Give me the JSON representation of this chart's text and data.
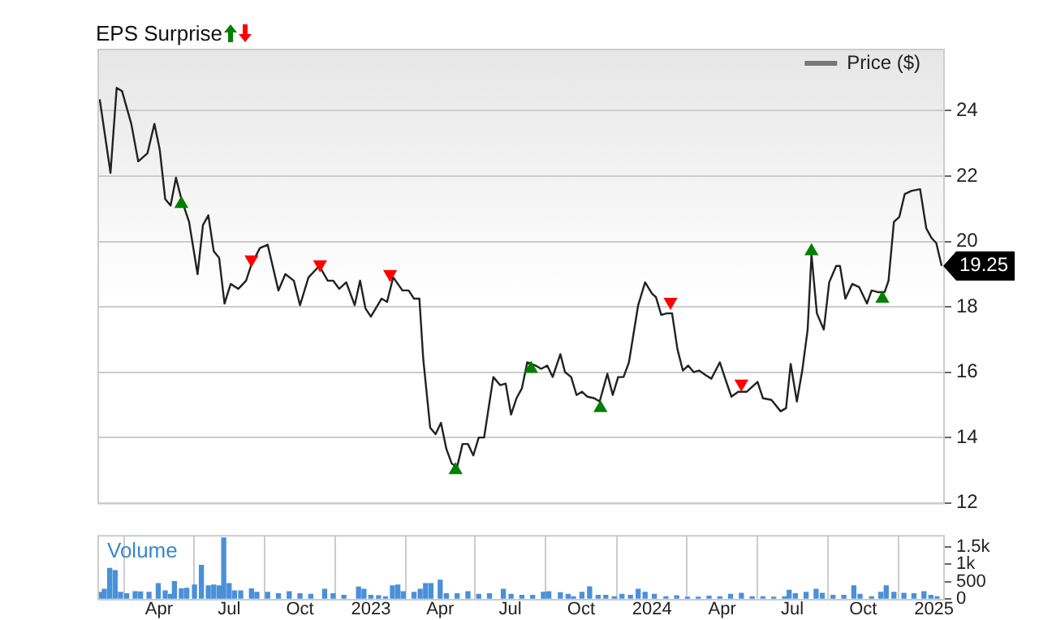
{
  "chart_data": [
    {
      "type": "line",
      "legend_title": "EPS Surprise",
      "legend": "top right",
      "grid": true,
      "tick_labels": "y",
      "xlim": [
        "2022-01-11",
        "2025-01-13"
      ],
      "ylim": [
        12,
        25.9
      ],
      "yticks": [
        12,
        14,
        16,
        18,
        20,
        22,
        24
      ],
      "xticks": [
        {
          "value": "2022-04-01",
          "label": null
        },
        {
          "value": "2022-07-01",
          "label": null
        },
        {
          "value": "2022-10-01",
          "label": null
        },
        {
          "value": "2023-01-01",
          "label": null
        },
        {
          "value": "2023-04-01",
          "label": null
        },
        {
          "value": "2023-07-01",
          "label": null
        },
        {
          "value": "2023-10-01",
          "label": null
        },
        {
          "value": "2024-01-01",
          "label": null
        },
        {
          "value": "2024-04-01",
          "label": null
        },
        {
          "value": "2024-07-01",
          "label": null
        },
        {
          "value": "2024-10-01",
          "label": null
        },
        {
          "value": "2025-01-01",
          "label": null
        }
      ],
      "annotations": [
        {
          "text": "19.25",
          "x": "2025-01-11",
          "y": 19.25
        }
      ],
      "series": [
        {
          "name": "Price ($)",
          "type": "line",
          "color": "#222222",
          "x": [
            "2022-01-14",
            "2022-01-28",
            "2022-02-05",
            "2022-02-12",
            "2022-02-24",
            "2022-03-05",
            "2022-03-17",
            "2022-03-26",
            "2022-04-02",
            "2022-04-09",
            "2022-04-16",
            "2022-04-23",
            "2022-04-30",
            "2022-05-10",
            "2022-05-21",
            "2022-05-28",
            "2022-06-04",
            "2022-06-11",
            "2022-06-18",
            "2022-06-25",
            "2022-07-03",
            "2022-07-13",
            "2022-07-23",
            "2022-07-30",
            "2022-08-10",
            "2022-08-20",
            "2022-09-03",
            "2022-09-12",
            "2022-09-23",
            "2022-10-01",
            "2022-10-12",
            "2022-10-26",
            "2022-11-06",
            "2022-11-13",
            "2022-11-21",
            "2022-11-30",
            "2022-12-11",
            "2022-12-18",
            "2022-12-25",
            "2023-01-01",
            "2023-01-15",
            "2023-01-22",
            "2023-01-30",
            "2023-02-11",
            "2023-02-19",
            "2023-02-26",
            "2023-03-05",
            "2023-03-10",
            "2023-03-19",
            "2023-03-26",
            "2023-04-02",
            "2023-04-09",
            "2023-04-16",
            "2023-04-23",
            "2023-04-30",
            "2023-05-07",
            "2023-05-14",
            "2023-05-21",
            "2023-05-28",
            "2023-06-09",
            "2023-06-18",
            "2023-06-25",
            "2023-07-02",
            "2023-07-09",
            "2023-07-16",
            "2023-07-23",
            "2023-08-03",
            "2023-08-10",
            "2023-08-18",
            "2023-08-25",
            "2023-09-04",
            "2023-09-10",
            "2023-09-18",
            "2023-09-25",
            "2023-10-02",
            "2023-10-09",
            "2023-10-18",
            "2023-10-25",
            "2023-11-04",
            "2023-11-11",
            "2023-11-18",
            "2023-11-25",
            "2023-12-02",
            "2023-12-14",
            "2023-12-23",
            "2024-01-01",
            "2024-01-06",
            "2024-01-13",
            "2024-01-20",
            "2024-01-27",
            "2024-02-03",
            "2024-02-10",
            "2024-02-17",
            "2024-02-24",
            "2024-03-02",
            "2024-03-11",
            "2024-03-18",
            "2024-03-29",
            "2024-04-05",
            "2024-04-13",
            "2024-04-22",
            "2024-05-03",
            "2024-05-17",
            "2024-05-24",
            "2024-06-04",
            "2024-06-16",
            "2024-06-23",
            "2024-06-29",
            "2024-07-07",
            "2024-07-14",
            "2024-07-21",
            "2024-07-26",
            "2024-08-02",
            "2024-08-11",
            "2024-08-18",
            "2024-08-27",
            "2024-09-01",
            "2024-09-08",
            "2024-09-17",
            "2024-09-26",
            "2024-10-06",
            "2024-10-12",
            "2024-10-20",
            "2024-10-29",
            "2024-11-03",
            "2024-11-10",
            "2024-11-17",
            "2024-11-24",
            "2024-12-03",
            "2024-12-14",
            "2024-12-22",
            "2024-12-29",
            "2025-01-04",
            "2025-01-11"
          ],
          "values": [
            24.35,
            22.1,
            24.7,
            24.6,
            23.6,
            22.45,
            22.7,
            23.6,
            22.8,
            21.3,
            21.1,
            21.95,
            21.3,
            20.6,
            19.0,
            20.5,
            20.8,
            19.7,
            19.5,
            18.1,
            18.7,
            18.55,
            18.8,
            19.3,
            19.8,
            19.9,
            18.5,
            19.0,
            18.8,
            18.05,
            18.9,
            19.25,
            18.8,
            18.8,
            18.55,
            18.75,
            18.05,
            18.8,
            17.95,
            17.7,
            18.25,
            18.15,
            18.9,
            18.5,
            18.5,
            18.25,
            18.25,
            16.4,
            14.3,
            14.1,
            14.45,
            13.65,
            13.2,
            13.1,
            13.8,
            13.8,
            13.45,
            14.0,
            14.0,
            15.85,
            15.6,
            15.65,
            14.7,
            15.2,
            15.5,
            16.3,
            16.2,
            16.1,
            16.2,
            15.85,
            16.55,
            16.0,
            15.85,
            15.3,
            15.4,
            15.25,
            15.2,
            15.1,
            15.95,
            15.3,
            15.85,
            15.85,
            16.3,
            18.05,
            18.75,
            18.4,
            18.3,
            17.75,
            17.8,
            17.8,
            16.7,
            16.05,
            16.2,
            16.0,
            16.05,
            15.9,
            15.8,
            16.3,
            15.8,
            15.25,
            15.4,
            15.4,
            15.7,
            15.2,
            15.15,
            14.8,
            14.9,
            16.25,
            15.1,
            16.05,
            17.3,
            19.6,
            17.8,
            17.3,
            18.75,
            19.25,
            19.25,
            18.25,
            18.7,
            18.6,
            18.1,
            18.5,
            18.45,
            18.45,
            18.8,
            20.6,
            20.75,
            21.45,
            21.55,
            21.6,
            20.4,
            20.1,
            19.95,
            19.25
          ]
        },
        {
          "type": "scatter",
          "marker": "triangle",
          "color": "#008000",
          "x": [
            "2022-04-30",
            "2023-04-21",
            "2023-07-28",
            "2023-10-26",
            "2024-07-26",
            "2024-10-26"
          ],
          "values": [
            21.15,
            13.0,
            16.1,
            14.9,
            19.7,
            18.25
          ]
        },
        {
          "type": "scatter",
          "marker": "triangle",
          "color": "#ff0000",
          "x": [
            "2022-07-30",
            "2022-10-27",
            "2023-01-26",
            "2024-01-25",
            "2024-04-26"
          ],
          "values": [
            19.45,
            19.3,
            19.0,
            18.15,
            15.65
          ]
        }
      ]
    },
    {
      "type": "bar",
      "title": "Volume",
      "grid": "x",
      "color": "#4a90d9",
      "xlim": [
        "2022-01-11",
        "2025-01-13"
      ],
      "ylim": [
        0,
        1850
      ],
      "yticks": [
        0,
        500,
        {
          "value": 1000,
          "label": "1k"
        },
        {
          "value": 1500,
          "label": "1.5k"
        }
      ],
      "xticks": [
        {
          "value": "2022-04-01",
          "label": "Apr"
        },
        {
          "value": "2022-07-01",
          "label": "Jul"
        },
        {
          "value": "2022-10-01",
          "label": "Oct"
        },
        {
          "value": "2023-01-01",
          "label": "2023"
        },
        {
          "value": "2023-04-01",
          "label": "Apr"
        },
        {
          "value": "2023-07-01",
          "label": "Jul"
        },
        {
          "value": "2023-10-01",
          "label": "Oct"
        },
        {
          "value": "2024-01-01",
          "label": "2024"
        },
        {
          "value": "2024-04-01",
          "label": "Apr"
        },
        {
          "value": "2024-07-01",
          "label": "Jul"
        },
        {
          "value": "2024-10-01",
          "label": "Oct"
        },
        {
          "value": "2025-01-01",
          "label": "2025"
        }
      ],
      "x": [
        "2022-01-14",
        "2022-01-20",
        "2022-01-27",
        "2022-02-03",
        "2022-02-10",
        "2022-02-18",
        "2022-03-01",
        "2022-03-08",
        "2022-03-19",
        "2022-03-31",
        "2022-04-09",
        "2022-04-16",
        "2022-04-21",
        "2022-04-30",
        "2022-05-07",
        "2022-05-17",
        "2022-05-26",
        "2022-06-04",
        "2022-06-11",
        "2022-06-18",
        "2022-06-24",
        "2022-07-01",
        "2022-07-08",
        "2022-07-16",
        "2022-07-30",
        "2022-08-06",
        "2022-08-20",
        "2022-09-03",
        "2022-09-17",
        "2022-10-01",
        "2022-10-15",
        "2022-11-02",
        "2022-11-13",
        "2022-11-27",
        "2022-12-16",
        "2022-12-23",
        "2023-01-01",
        "2023-01-11",
        "2023-01-20",
        "2023-01-29",
        "2023-02-05",
        "2023-02-12",
        "2023-02-26",
        "2023-03-06",
        "2023-03-13",
        "2023-03-20",
        "2023-04-01",
        "2023-04-09",
        "2023-04-23",
        "2023-05-07",
        "2023-05-21",
        "2023-06-04",
        "2023-06-22",
        "2023-07-02",
        "2023-07-16",
        "2023-07-30",
        "2023-08-13",
        "2023-08-20",
        "2023-09-04",
        "2023-09-14",
        "2023-09-21",
        "2023-10-02",
        "2023-10-12",
        "2023-10-23",
        "2023-11-02",
        "2023-11-13",
        "2023-11-23",
        "2023-12-04",
        "2023-12-14",
        "2023-12-23",
        "2024-01-04",
        "2024-01-19",
        "2024-02-02",
        "2024-02-16",
        "2024-03-01",
        "2024-03-15",
        "2024-03-29",
        "2024-04-12",
        "2024-04-26",
        "2024-05-10",
        "2024-05-24",
        "2024-06-07",
        "2024-06-21",
        "2024-06-27",
        "2024-07-05",
        "2024-07-19",
        "2024-08-01",
        "2024-08-09",
        "2024-08-23",
        "2024-09-06",
        "2024-09-19",
        "2024-09-27",
        "2024-10-12",
        "2024-10-24",
        "2024-10-31",
        "2024-11-10",
        "2024-11-23",
        "2024-12-06",
        "2024-12-19",
        "2024-12-28",
        "2025-01-05"
      ],
      "values": [
        190,
        280,
        880,
        820,
        190,
        150,
        210,
        200,
        190,
        440,
        230,
        130,
        500,
        290,
        310,
        400,
        970,
        380,
        400,
        380,
        1760,
        440,
        230,
        230,
        290,
        190,
        190,
        150,
        210,
        150,
        130,
        280,
        150,
        100,
        340,
        280,
        100,
        90,
        60,
        380,
        400,
        210,
        190,
        280,
        440,
        440,
        540,
        150,
        150,
        210,
        130,
        150,
        280,
        130,
        100,
        100,
        190,
        210,
        180,
        130,
        60,
        190,
        350,
        100,
        100,
        60,
        130,
        100,
        280,
        190,
        130,
        60,
        90,
        50,
        50,
        80,
        60,
        130,
        160,
        60,
        60,
        50,
        60,
        250,
        150,
        190,
        280,
        160,
        100,
        100,
        380,
        130,
        60,
        190,
        380,
        190,
        160,
        150,
        210,
        100,
        60
      ]
    }
  ]
}
